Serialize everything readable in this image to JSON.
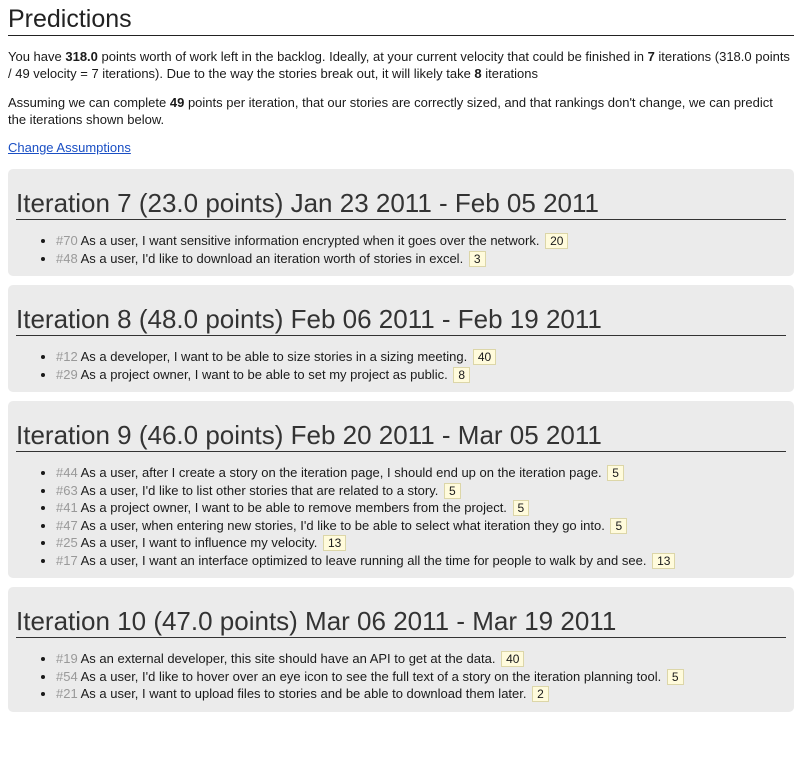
{
  "page": {
    "title": "Predictions",
    "summary": {
      "p1_a": "You have ",
      "points_left": "318.0",
      "p1_b": " points worth of work left in the backlog. Ideally, at your current velocity that could be finished in ",
      "ideal_iterations": "7",
      "p1_c": " iterations (318.0 points / 49 velocity = 7 iterations). Due to the way the stories break out, it will likely take ",
      "likely_iterations": "8",
      "p1_d": " iterations"
    },
    "assumption": {
      "p2_a": "Assuming we can complete ",
      "velocity": "49",
      "p2_b": " points per iteration, that our stories are correctly sized, and that rankings don't change, we can predict the iterations shown below."
    },
    "change_link": "Change Assumptions"
  },
  "iterations": [
    {
      "title": "Iteration 7 (23.0 points) Jan 23 2011 - Feb 05 2011",
      "stories": [
        {
          "num": "#70",
          "text": "As a user, I want sensitive information encrypted when it goes over the network.",
          "points": "20"
        },
        {
          "num": "#48",
          "text": "As a user, I'd like to download an iteration worth of stories in excel.",
          "points": "3"
        }
      ]
    },
    {
      "title": "Iteration 8 (48.0 points) Feb 06 2011 - Feb 19 2011",
      "stories": [
        {
          "num": "#12",
          "text": "As a developer, I want to be able to size stories in a sizing meeting.",
          "points": "40"
        },
        {
          "num": "#29",
          "text": "As a project owner, I want to be able to set my project as public.",
          "points": "8"
        }
      ]
    },
    {
      "title": "Iteration 9 (46.0 points) Feb 20 2011 - Mar 05 2011",
      "stories": [
        {
          "num": "#44",
          "text": "As a user, after I create a story on the iteration page, I should end up on the iteration page.",
          "points": "5"
        },
        {
          "num": "#63",
          "text": "As a user, I'd like to list other stories that are related to a story.",
          "points": "5"
        },
        {
          "num": "#41",
          "text": "As a project owner, I want to be able to remove members from the project.",
          "points": "5"
        },
        {
          "num": "#47",
          "text": "As a user, when entering new stories, I'd like to be able to select what iteration they go into.",
          "points": "5"
        },
        {
          "num": "#25",
          "text": "As a user, I want to influence my velocity.",
          "points": "13"
        },
        {
          "num": "#17",
          "text": "As a user, I want an interface optimized to leave running all the time for people to walk by and see.",
          "points": "13"
        }
      ]
    },
    {
      "title": "Iteration 10 (47.0 points) Mar 06 2011 - Mar 19 2011",
      "stories": [
        {
          "num": "#19",
          "text": "As an external developer, this site should have an API to get at the data.",
          "points": "40"
        },
        {
          "num": "#54",
          "text": "As a user, I'd like to hover over an eye icon to see the full text of a story on the iteration planning tool.",
          "points": "5"
        },
        {
          "num": "#21",
          "text": "As a user, I want to upload files to stories and be able to download them later.",
          "points": "2"
        }
      ]
    }
  ]
}
